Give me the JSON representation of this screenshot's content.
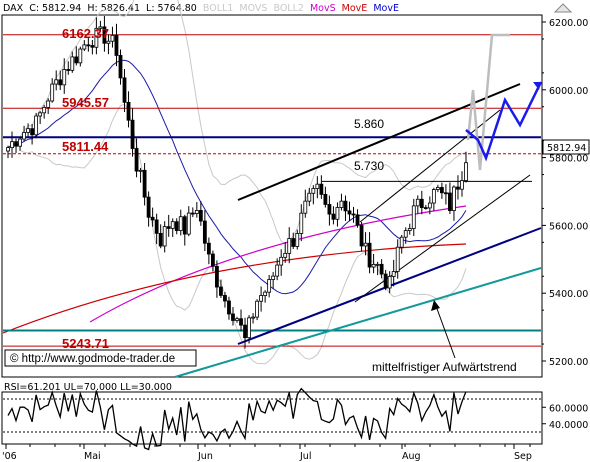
{
  "chart_data": [
    {
      "type": "candlestick",
      "header": {
        "instrument": "DAX",
        "close_label": "C: 5812.94",
        "high_label": "H: 5826.41",
        "low_label": "L: 5764.80",
        "indicators": [
          "BOLL1",
          "MOVS",
          "BOLL2",
          "MovS",
          "MovE",
          "MovE"
        ],
        "indicator_colors": [
          "#c8c8c8",
          "#c8c8c8",
          "#c8c8c8",
          "#cc00cc",
          "#cc0000",
          "#0000cc"
        ]
      },
      "ylim": [
        5200,
        6250
      ],
      "y_ticks": [
        "6200.00",
        "6000.00",
        "5800.00",
        "5600.00",
        "5400.00",
        "5200.00"
      ],
      "x_ticks": [
        "'06",
        "Mai",
        "Jun",
        "Jul",
        "Aug",
        "Sep"
      ],
      "last_price_label": "5812.94",
      "levels": [
        {
          "value": 6162.37,
          "label": "6162.37",
          "color": "#c00000"
        },
        {
          "value": 5945.57,
          "label": "5945.57",
          "color": "#c00000"
        },
        {
          "value": 5860,
          "label": "5.860",
          "color": "#000080"
        },
        {
          "value": 5811.44,
          "label": "5811.44",
          "color": "#c00000"
        },
        {
          "value": 5730,
          "label": "5.730",
          "color": "#000000"
        },
        {
          "value": 5290,
          "label": "",
          "color": "#008080"
        },
        {
          "value": 5243.71,
          "label": "5243.71",
          "color": "#c00000"
        }
      ],
      "annotation": "mittelfristiger Aufwärtstrend",
      "watermark": "© http://www.godmode-trader.de",
      "colors": {
        "frame": "#000000",
        "candle": "#000000",
        "bollinger": "#c8c8c8",
        "movs": "#cc00cc",
        "move_red": "#cc0000",
        "move_blue": "#1a1aa6",
        "trend_teal": "#129a9a",
        "projection_blue": "#1a1aee",
        "projection_gray": "#bdbdbd"
      }
    },
    {
      "type": "line",
      "header": "RSI=61.201 UL=70.000 LL=30.000",
      "ylim": [
        20,
        80
      ],
      "y_ticks": [
        "60.0000",
        "40.0000"
      ],
      "upper_level": 70,
      "lower_level": 30,
      "last_label": "",
      "color": "#000000"
    }
  ]
}
